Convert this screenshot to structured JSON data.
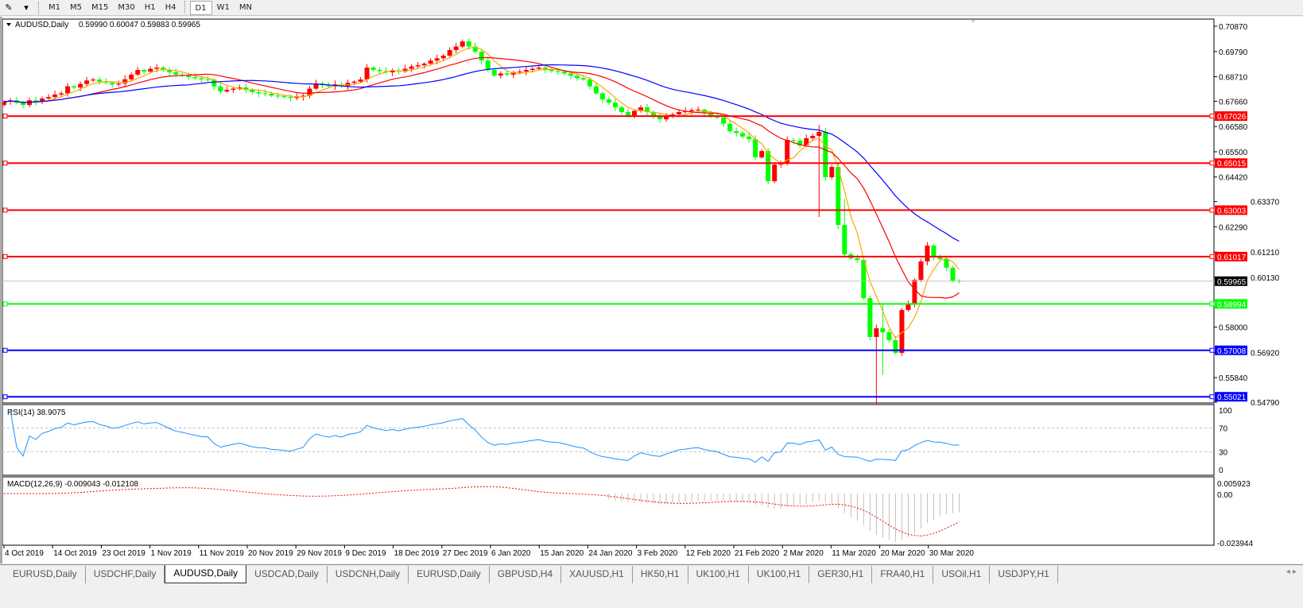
{
  "toolbar": {
    "timeframes": [
      "M1",
      "M5",
      "M15",
      "M30",
      "H1",
      "H4",
      "D1",
      "W1",
      "MN"
    ],
    "active": "D1"
  },
  "chart": {
    "symbol_label": "AUDUSD,Daily",
    "ohlc_label": "0.59990 0.60047 0.59883 0.59965",
    "rsi_label": "RSI(14) 38.9075",
    "macd_label": "MACD(12,26,9) -0.009043 -0.012108",
    "colors": {
      "bull_candle": "#ff0000",
      "bear_candle": "#00ff00",
      "ma_fast": "#ffa500",
      "ma_mid": "#ff0000",
      "ma_slow": "#0000ff",
      "rsi": "#1e90ff",
      "macd_hist": "#c0c0c0",
      "macd_signal": "#ff0000"
    }
  },
  "chart_data": {
    "type": "candlestick",
    "closes": [
      0.6764,
      0.677,
      0.676,
      0.675,
      0.677,
      0.6765,
      0.6778,
      0.6784,
      0.6795,
      0.68,
      0.683,
      0.6825,
      0.684,
      0.6855,
      0.6859,
      0.685,
      0.6845,
      0.6838,
      0.6842,
      0.686,
      0.688,
      0.69,
      0.6893,
      0.6905,
      0.691,
      0.69,
      0.689,
      0.688,
      0.6876,
      0.687,
      0.6865,
      0.686,
      0.6859,
      0.683,
      0.6808,
      0.6815,
      0.682,
      0.6825,
      0.6815,
      0.6805,
      0.68,
      0.6798,
      0.679,
      0.6788,
      0.6784,
      0.678,
      0.6785,
      0.679,
      0.682,
      0.6842,
      0.6835,
      0.683,
      0.6838,
      0.6832,
      0.6845,
      0.685,
      0.6859,
      0.691,
      0.69,
      0.6895,
      0.689,
      0.6898,
      0.6893,
      0.6905,
      0.6915,
      0.692,
      0.6927,
      0.694,
      0.695,
      0.6961,
      0.6985,
      0.7,
      0.7022,
      0.7,
      0.6978,
      0.694,
      0.69,
      0.6876,
      0.6885,
      0.688,
      0.689,
      0.6893,
      0.69,
      0.6905,
      0.691,
      0.69,
      0.6895,
      0.6893,
      0.6885,
      0.6875,
      0.6865,
      0.6859,
      0.683,
      0.68,
      0.6774,
      0.676,
      0.674,
      0.672,
      0.6706,
      0.6725,
      0.674,
      0.672,
      0.67,
      0.6689,
      0.67,
      0.671,
      0.672,
      0.6723,
      0.6728,
      0.673,
      0.6715,
      0.6705,
      0.6696,
      0.667,
      0.6638,
      0.663,
      0.6615,
      0.6604,
      0.6526,
      0.6553,
      0.6424,
      0.6495,
      0.6501,
      0.6601,
      0.6598,
      0.6577,
      0.6608,
      0.6618,
      0.6635,
      0.6441,
      0.6485,
      0.6237,
      0.6111,
      0.6094,
      0.6087,
      0.5924,
      0.5758,
      0.5795,
      0.5778,
      0.5744,
      0.569,
      0.5873,
      0.59,
      0.6002,
      0.6081,
      0.6149,
      0.6098,
      0.6091,
      0.6054,
      0.5999,
      0.59965
    ],
    "first_open": 0.675,
    "wick_extremes": {
      "128": {
        "high": 0.6665,
        "low": 0.6271
      },
      "132": {
        "high": 0.6349
      },
      "137": {
        "low": 0.5469
      },
      "138": {
        "low": 0.5595,
        "high": 0.59
      },
      "150": {
        "high": 0.60047,
        "low": 0.59883
      }
    },
    "price_ticks": [
      "0.70870",
      "0.69790",
      "0.68710",
      "0.67660",
      "0.66580",
      "0.65500",
      "0.64420",
      "0.63370",
      "0.62290",
      "0.61210",
      "0.60130",
      "0.58000",
      "0.56920",
      "0.55840",
      "0.54790"
    ],
    "levels": [
      {
        "price": "0.67026",
        "color": "#ff0000"
      },
      {
        "price": "0.65015",
        "color": "#ff0000"
      },
      {
        "price": "0.63003",
        "color": "#ff0000"
      },
      {
        "price": "0.61017",
        "color": "#ff0000"
      },
      {
        "price": "0.58994",
        "color": "#00ff00"
      },
      {
        "price": "0.57008",
        "color": "#0000ff"
      },
      {
        "price": "0.55021",
        "color": "#0000ff"
      }
    ],
    "current_price": "0.59965",
    "rsi_ticks": [
      "100",
      "70",
      "30",
      "0"
    ],
    "macd_ticks": [
      "0.005923",
      "0.00",
      "-0.023944"
    ],
    "date_labels": [
      "4 Oct 2019",
      "14 Oct 2019",
      "23 Oct 2019",
      "1 Nov 2019",
      "11 Nov 2019",
      "20 Nov 2019",
      "29 Nov 2019",
      "9 Dec 2019",
      "18 Dec 2019",
      "27 Dec 2019",
      "6 Jan 2020",
      "15 Jan 2020",
      "24 Jan 2020",
      "3 Feb 2020",
      "12 Feb 2020",
      "21 Feb 2020",
      "2 Mar 2020",
      "11 Mar 2020",
      "20 Mar 2020",
      "30 Mar 2020"
    ]
  },
  "tabs": [
    {
      "label": "EURUSD,Daily"
    },
    {
      "label": "USDCHF,Daily"
    },
    {
      "label": "AUDUSD,Daily",
      "active": true
    },
    {
      "label": "USDCAD,Daily"
    },
    {
      "label": "USDCNH,Daily"
    },
    {
      "label": "EURUSD,Daily"
    },
    {
      "label": "GBPUSD,H4"
    },
    {
      "label": "XAUUSD,H1"
    },
    {
      "label": "HK50,H1"
    },
    {
      "label": "UK100,H1"
    },
    {
      "label": "UK100,H1"
    },
    {
      "label": "GER30,H1"
    },
    {
      "label": "FRA40,H1"
    },
    {
      "label": "USOil,H1"
    },
    {
      "label": "USDJPY,H1"
    }
  ]
}
